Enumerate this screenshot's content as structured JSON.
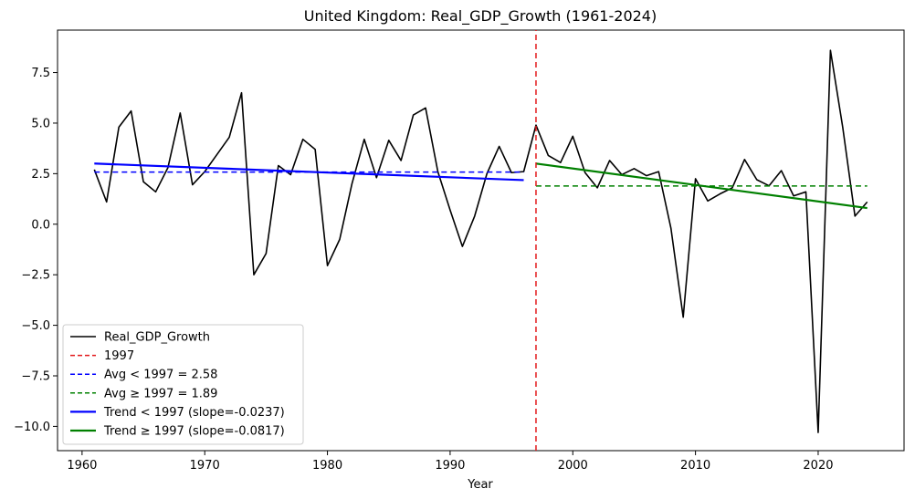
{
  "chart_data": {
    "type": "line",
    "title": "United Kingdom: Real_GDP_Growth (1961-2024)",
    "xlabel": "Year",
    "ylabel": "",
    "xlim": [
      1958,
      2027
    ],
    "ylim": [
      -11.2,
      9.6
    ],
    "x_ticks": [
      1960,
      1970,
      1980,
      1990,
      2000,
      2010,
      2020
    ],
    "y_ticks": [
      -10.0,
      -7.5,
      -5.0,
      -2.5,
      0.0,
      2.5,
      5.0,
      7.5
    ],
    "grid": false,
    "legend_position": "lower-left",
    "series": [
      {
        "name": "Real_GDP_Growth",
        "color": "#000000",
        "style": "solid",
        "x": [
          1961,
          1962,
          1963,
          1964,
          1965,
          1966,
          1967,
          1968,
          1969,
          1970,
          1971,
          1972,
          1973,
          1974,
          1975,
          1976,
          1977,
          1978,
          1979,
          1980,
          1981,
          1982,
          1983,
          1984,
          1985,
          1986,
          1987,
          1988,
          1989,
          1990,
          1991,
          1992,
          1993,
          1994,
          1995,
          1996,
          1997,
          1998,
          1999,
          2000,
          2001,
          2002,
          2003,
          2004,
          2005,
          2006,
          2007,
          2008,
          2009,
          2010,
          2011,
          2012,
          2013,
          2014,
          2015,
          2016,
          2017,
          2018,
          2019,
          2020,
          2021,
          2022,
          2023,
          2024
        ],
        "y": [
          2.7,
          1.1,
          4.8,
          5.6,
          2.1,
          1.6,
          2.8,
          5.5,
          1.95,
          2.6,
          3.45,
          4.3,
          6.5,
          -2.5,
          -1.45,
          2.9,
          2.45,
          4.2,
          3.7,
          -2.05,
          -0.75,
          2.0,
          4.2,
          2.3,
          4.15,
          3.15,
          5.4,
          5.75,
          2.6,
          0.7,
          -1.1,
          0.4,
          2.5,
          3.85,
          2.55,
          2.6,
          4.9,
          3.4,
          3.05,
          4.35,
          2.55,
          1.8,
          3.15,
          2.45,
          2.75,
          2.4,
          2.6,
          -0.2,
          -4.6,
          2.25,
          1.15,
          1.5,
          1.8,
          3.2,
          2.2,
          1.9,
          2.65,
          1.4,
          1.6,
          -10.3,
          8.6,
          4.8,
          0.4,
          1.1
        ]
      },
      {
        "name": "1997",
        "color": "#e31a1c",
        "style": "dashed",
        "x": [
          1997,
          1997
        ],
        "y": [
          -11.2,
          9.6
        ]
      },
      {
        "name": "Avg < 1997 = 2.58",
        "color": "#0000ff",
        "style": "dashed",
        "x": [
          1961,
          1996
        ],
        "y": [
          2.58,
          2.58
        ]
      },
      {
        "name": "Avg ≥ 1997 = 1.89",
        "color": "#008000",
        "style": "dashed",
        "x": [
          1997,
          2024
        ],
        "y": [
          1.89,
          1.89
        ]
      },
      {
        "name": "Trend < 1997 (slope=-0.0237)",
        "color": "#0000ff",
        "style": "solid-thick",
        "x": [
          1961,
          1996
        ],
        "y": [
          3.0,
          2.18
        ]
      },
      {
        "name": "Trend ≥ 1997 (slope=-0.0817)",
        "color": "#008000",
        "style": "solid-thick",
        "x": [
          1997,
          2024
        ],
        "y": [
          3.0,
          0.8
        ]
      }
    ]
  }
}
